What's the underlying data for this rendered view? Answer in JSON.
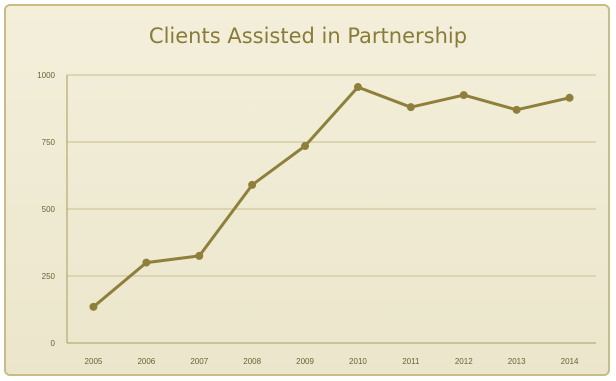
{
  "chart_data": {
    "type": "line",
    "title": "Clients Assisted in Partnership",
    "xlabel": "",
    "ylabel": "",
    "categories": [
      "2005",
      "2006",
      "2007",
      "2008",
      "2009",
      "2010",
      "2011",
      "2012",
      "2013",
      "2014"
    ],
    "series": [
      {
        "values": [
          135,
          300,
          325,
          590,
          735,
          955,
          880,
          925,
          870,
          915
        ]
      }
    ],
    "ylim": [
      0,
      1000
    ],
    "yticks": [
      0,
      250,
      500,
      750,
      1000
    ],
    "grid": true,
    "legend": "none",
    "colors": {
      "line": "#8e7f3b",
      "grid": "#c9bf8c",
      "axis": "#a89b5c",
      "background": "#eee9d2",
      "text": "#6b6238"
    }
  }
}
